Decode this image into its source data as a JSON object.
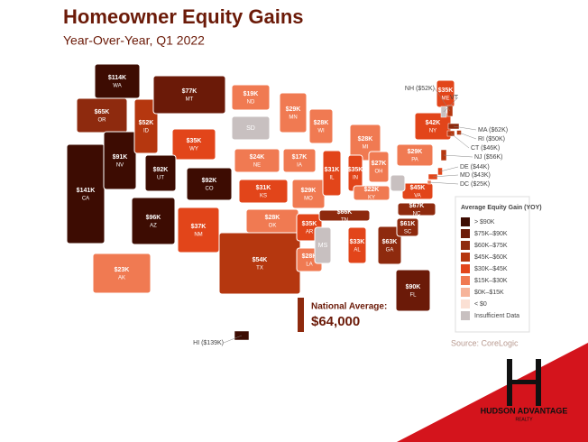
{
  "header": {
    "title": "Homeowner Equity Gains",
    "subtitle": "Year-Over-Year, Q1 2022"
  },
  "states": [
    {
      "name": "WA",
      "label": "$114K",
      "color": "#3d0c02"
    },
    {
      "name": "OR",
      "label": "$65K",
      "color": "#8e2a0e"
    },
    {
      "name": "CA",
      "label": "$141K",
      "color": "#3d0c02"
    },
    {
      "name": "NV",
      "label": "$91K",
      "color": "#3d0c02"
    },
    {
      "name": "ID",
      "label": "$52K",
      "color": "#b5370f"
    },
    {
      "name": "MT",
      "label": "$77K",
      "color": "#6b1a08"
    },
    {
      "name": "WY",
      "label": "$35K",
      "color": "#e2451a"
    },
    {
      "name": "UT",
      "label": "$92K",
      "color": "#3d0c02"
    },
    {
      "name": "AZ",
      "label": "$96K",
      "color": "#3d0c02"
    },
    {
      "name": "CO",
      "label": "$92K",
      "color": "#3d0c02"
    },
    {
      "name": "NM",
      "label": "$37K",
      "color": "#e2451a"
    },
    {
      "name": "ND",
      "label": "$19K",
      "color": "#f07a52"
    },
    {
      "name": "SD",
      "color": "#c8c0c0"
    },
    {
      "name": "NE",
      "label": "$24K",
      "color": "#f07a52"
    },
    {
      "name": "KS",
      "label": "$31K",
      "color": "#e2451a"
    },
    {
      "name": "OK",
      "label": "$28K",
      "color": "#f07a52"
    },
    {
      "name": "TX",
      "label": "$54K",
      "color": "#b5370f"
    },
    {
      "name": "MN",
      "label": "$29K",
      "color": "#f07a52"
    },
    {
      "name": "IA",
      "label": "$17K",
      "color": "#f07a52"
    },
    {
      "name": "MO",
      "label": "$29K",
      "color": "#f07a52"
    },
    {
      "name": "AR",
      "label": "$35K",
      "color": "#e2451a"
    },
    {
      "name": "LA",
      "label": "$28K",
      "color": "#f07a52"
    },
    {
      "name": "WI",
      "label": "$28K",
      "color": "#f07a52"
    },
    {
      "name": "IL",
      "label": "$31K",
      "color": "#e2451a"
    },
    {
      "name": "MI",
      "label": "$28K",
      "color": "#f07a52"
    },
    {
      "name": "IN",
      "label": "$35K",
      "color": "#e2451a"
    },
    {
      "name": "OH",
      "label": "$27K",
      "color": "#f07a52"
    },
    {
      "name": "KY",
      "label": "$22K",
      "color": "#f07a52"
    },
    {
      "name": "TN",
      "label": "$66K",
      "color": "#8e2a0e"
    },
    {
      "name": "MS",
      "color": "#c8c0c0"
    },
    {
      "name": "AL",
      "label": "$33K",
      "color": "#e2451a"
    },
    {
      "name": "GA",
      "label": "$63K",
      "color": "#8e2a0e"
    },
    {
      "name": "FL",
      "label": "$90K",
      "color": "#6b1a08"
    },
    {
      "name": "SC",
      "label": "$61K",
      "color": "#8e2a0e"
    },
    {
      "name": "NC",
      "label": "$67K",
      "color": "#8e2a0e"
    },
    {
      "name": "VA",
      "label": "$45K",
      "color": "#e2451a"
    },
    {
      "color": "#c8c0c0"
    },
    {
      "name": "PA",
      "label": "$29K",
      "color": "#f07a52"
    },
    {
      "name": "NY",
      "label": "$42K",
      "color": "#e2451a"
    },
    {
      "name": "ME",
      "label": "$35K",
      "color": "#e2451a"
    },
    {
      "name": "AK",
      "label": "$23K",
      "color": "#f07a52"
    }
  ],
  "callouts": [
    {
      "label": "NH ($52K)",
      "color": "#b5370f"
    },
    {
      "label": "VT",
      "color": "#c8c0c0"
    },
    {
      "label": "MA ($62K)",
      "color": "#8e2a0e"
    },
    {
      "label": "RI ($50K)",
      "color": "#b5370f"
    },
    {
      "label": "CT ($46K)",
      "color": "#b5370f"
    },
    {
      "label": "NJ ($56K)",
      "color": "#b5370f"
    },
    {
      "label": "DE ($44K)",
      "color": "#e2451a"
    },
    {
      "label": "MD ($43K)",
      "color": "#e2451a"
    },
    {
      "label": "DC ($25K)",
      "color": "#f07a52"
    },
    {
      "label": "HI ($139K)",
      "color": "#3d0c02"
    }
  ],
  "legend": {
    "title": "Average Equity Gain (YOY)",
    "items": [
      {
        "label": "> $90K",
        "color": "#3d0c02"
      },
      {
        "label": "$75K–$90K",
        "color": "#6b1a08"
      },
      {
        "label": "$60K–$75K",
        "color": "#8e2a0e"
      },
      {
        "label": "$45K–$60K",
        "color": "#b5370f"
      },
      {
        "label": "$30K–$45K",
        "color": "#e2451a"
      },
      {
        "label": "$15K–$30K",
        "color": "#f07a52"
      },
      {
        "label": "$0K–$15K",
        "color": "#f6b49a"
      },
      {
        "label": "< $0",
        "color": "#fbe0d4"
      },
      {
        "label": "Insufficient Data",
        "color": "#c8c0c0"
      }
    ]
  },
  "national": {
    "label": "National Average:",
    "value": "$64,000"
  },
  "source": "Source: CoreLogic",
  "logo": {
    "name": "HUDSON ADVANTAGE",
    "sub": "REALTY"
  }
}
